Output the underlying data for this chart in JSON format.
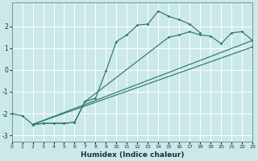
{
  "xlabel": "Humidex (Indice chaleur)",
  "xlim": [
    0,
    23
  ],
  "ylim": [
    -3.3,
    3.1
  ],
  "xticks": [
    0,
    1,
    2,
    3,
    4,
    5,
    6,
    7,
    8,
    9,
    10,
    11,
    12,
    13,
    14,
    15,
    16,
    17,
    18,
    19,
    20,
    21,
    22,
    23
  ],
  "yticks": [
    -3,
    -2,
    -1,
    0,
    1,
    2
  ],
  "bg": "#cce9e9",
  "grid_color": "#ffffff",
  "lc": "#2a7a6a",
  "line1": {
    "x": [
      0,
      1,
      2,
      3,
      4,
      5,
      6,
      7,
      8,
      9,
      10,
      11,
      12,
      13,
      14,
      15,
      16,
      17,
      18
    ],
    "y": [
      -2.0,
      -2.1,
      -2.5,
      -2.45,
      -2.45,
      -2.45,
      -2.4,
      -1.45,
      -1.3,
      -0.05,
      1.3,
      1.6,
      2.05,
      2.1,
      2.7,
      2.45,
      2.3,
      2.1,
      1.7
    ]
  },
  "line2": {
    "x": [
      2,
      3,
      4,
      5,
      6,
      7,
      15,
      16,
      17,
      18,
      19,
      20,
      21,
      22,
      23
    ],
    "y": [
      -2.5,
      -2.45,
      -2.45,
      -2.45,
      -2.4,
      -1.45,
      1.5,
      1.6,
      1.75,
      1.6,
      1.55,
      1.2,
      1.7,
      1.75,
      1.35
    ]
  },
  "line3_x": [
    2,
    23
  ],
  "line3_y": [
    -2.5,
    1.35
  ],
  "line4_x": [
    2,
    23
  ],
  "line4_y": [
    -2.5,
    1.05
  ]
}
